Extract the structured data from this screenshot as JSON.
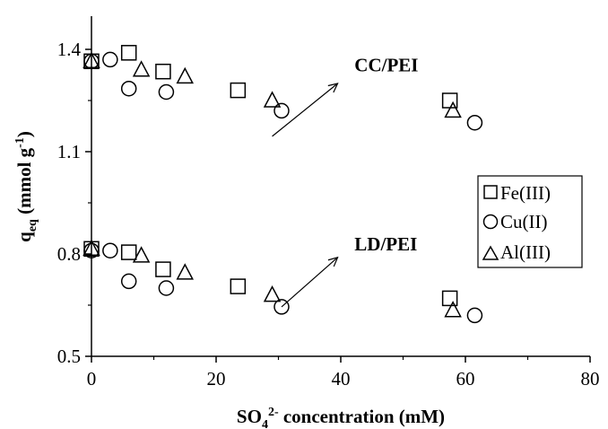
{
  "chart_data": {
    "type": "scatter",
    "xlabel": {
      "main": "SO",
      "sub": "4",
      "sup": "2-",
      "rest": " concentration (mM)"
    },
    "ylabel": {
      "main": "q",
      "sub": "eq",
      "rest1": " (mmol g",
      "sup": "-1",
      "rest2": ")"
    },
    "xlim": [
      0,
      80
    ],
    "ylim": [
      0.5,
      1.4
    ],
    "xticks": [
      0,
      20,
      40,
      60,
      80
    ],
    "yticks": [
      0.5,
      0.8,
      1.1,
      1.4
    ],
    "ytick_labels": [
      "0.5",
      "0.8",
      "1.1",
      "1.4"
    ],
    "grid": false,
    "legend_position": "right",
    "series": [
      {
        "name": "Fe(III)",
        "marker": "square",
        "points": [
          [
            0,
            1.365
          ],
          [
            6,
            1.39
          ],
          [
            11.5,
            1.335
          ],
          [
            23.5,
            1.28
          ],
          [
            57.5,
            1.25
          ],
          [
            0,
            0.815
          ],
          [
            6,
            0.805
          ],
          [
            11.5,
            0.755
          ],
          [
            23.5,
            0.705
          ],
          [
            57.5,
            0.67
          ]
        ]
      },
      {
        "name": "Cu(II)",
        "marker": "circle",
        "points": [
          [
            0,
            1.365
          ],
          [
            3,
            1.37
          ],
          [
            6,
            1.285
          ],
          [
            12,
            1.275
          ],
          [
            30.5,
            1.22
          ],
          [
            61.5,
            1.185
          ],
          [
            0,
            0.81
          ],
          [
            3,
            0.81
          ],
          [
            6,
            0.72
          ],
          [
            12,
            0.7
          ],
          [
            30.5,
            0.645
          ],
          [
            61.5,
            0.62
          ]
        ]
      },
      {
        "name": "Al(III)",
        "marker": "triangle",
        "points": [
          [
            0,
            1.365
          ],
          [
            8,
            1.34
          ],
          [
            15,
            1.32
          ],
          [
            29,
            1.25
          ],
          [
            58,
            1.22
          ],
          [
            0,
            0.815
          ],
          [
            8,
            0.795
          ],
          [
            15,
            0.745
          ],
          [
            29,
            0.68
          ],
          [
            58,
            0.635
          ]
        ]
      }
    ],
    "annotations": [
      {
        "text": "CC/PEI",
        "x": 42.2,
        "y": 1.335,
        "arrow_from": [
          29,
          1.145
        ],
        "arrow_to": [
          39.5,
          1.3
        ]
      },
      {
        "text": "LD/PEI",
        "x": 42.2,
        "y": 0.81,
        "arrow_from": [
          30.5,
          0.645
        ],
        "arrow_to": [
          39.5,
          0.79
        ]
      }
    ]
  }
}
